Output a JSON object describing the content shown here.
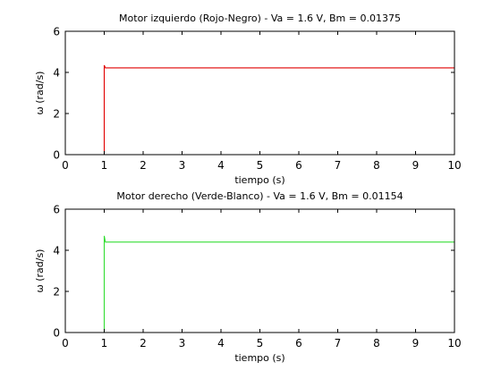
{
  "chart_data": [
    {
      "type": "line",
      "title": "Motor izquierdo (Rojo-Negro) - Va = 1.6 V, Bm = 0.01375",
      "xlabel": "tiempo (s)",
      "ylabel": "ω (rad/s)",
      "xlim": [
        0,
        10
      ],
      "ylim": [
        0,
        6
      ],
      "xticks": [
        "0",
        "1",
        "2",
        "3",
        "4",
        "5",
        "6",
        "7",
        "8",
        "9",
        "10"
      ],
      "yticks": [
        "0",
        "2",
        "4",
        "6"
      ],
      "grid": false,
      "series": [
        {
          "color": "#e00000",
          "x": [
            0,
            1,
            1,
            1.03,
            10
          ],
          "y": [
            0,
            0,
            4.35,
            4.22,
            4.22
          ]
        }
      ]
    },
    {
      "type": "line",
      "title": "Motor derecho (Verde-Blanco) - Va = 1.6 V, Bm = 0.01154",
      "xlabel": "tiempo (s)",
      "ylabel": "ω (rad/s)",
      "xlim": [
        0,
        10
      ],
      "ylim": [
        0,
        6
      ],
      "xticks": [
        "0",
        "1",
        "2",
        "3",
        "4",
        "5",
        "6",
        "7",
        "8",
        "9",
        "10"
      ],
      "yticks": [
        "0",
        "2",
        "4",
        "6"
      ],
      "grid": false,
      "series": [
        {
          "color": "#33dd33",
          "x": [
            0,
            1,
            1,
            1.03,
            10
          ],
          "y": [
            0,
            0,
            4.7,
            4.4,
            4.4
          ]
        }
      ]
    }
  ]
}
